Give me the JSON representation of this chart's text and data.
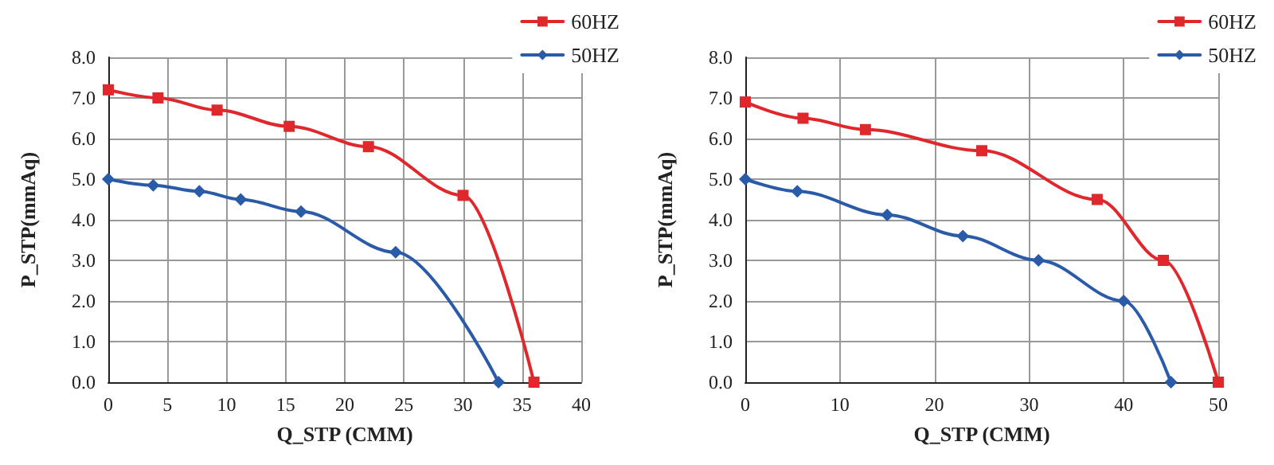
{
  "chart_data": [
    {
      "type": "line",
      "xlabel": "Q_STP (CMM)",
      "ylabel": "P_STP(mmAq)",
      "xlim": [
        0,
        40
      ],
      "xticks": [
        0,
        5,
        10,
        15,
        20,
        25,
        30,
        35,
        40
      ],
      "ylim": [
        0,
        8
      ],
      "yticks": [
        {
          "value": 0,
          "label": "0.0"
        },
        {
          "value": 1,
          "label": "1.0"
        },
        {
          "value": 2,
          "label": "2.0"
        },
        {
          "value": 3,
          "label": "3.0"
        },
        {
          "value": 4,
          "label": "4.0"
        },
        {
          "value": 5,
          "label": "5.0"
        },
        {
          "value": 6,
          "label": "6.0"
        },
        {
          "value": 7,
          "label": "7.0"
        },
        {
          "value": 8,
          "label": "8.0"
        }
      ],
      "grid": true,
      "legend": "top right",
      "line_style": "solid",
      "series": [
        {
          "name": "60HZ",
          "color": "#e0282c",
          "marker": "square",
          "x": [
            0,
            4.2,
            9.2,
            15.3,
            22,
            30,
            36
          ],
          "values": [
            7.2,
            7.0,
            6.7,
            6.3,
            5.8,
            4.6,
            0
          ]
        },
        {
          "name": "50HZ",
          "color": "#2a5ba8",
          "marker": "diamond",
          "x": [
            0,
            3.8,
            7.7,
            11.2,
            16.3,
            24.3,
            33
          ],
          "values": [
            5.0,
            4.85,
            4.7,
            4.5,
            4.2,
            3.2,
            0
          ]
        }
      ]
    },
    {
      "type": "line",
      "xlabel": "Q_STP (CMM)",
      "ylabel": "P_STP(mmAq)",
      "xlim": [
        0,
        50
      ],
      "xticks": [
        0,
        10,
        20,
        30,
        40,
        50
      ],
      "ylim": [
        0,
        8
      ],
      "yticks": [
        {
          "value": 0,
          "label": "0.0"
        },
        {
          "value": 1,
          "label": "1.0"
        },
        {
          "value": 2,
          "label": "2.0"
        },
        {
          "value": 3,
          "label": "3.0"
        },
        {
          "value": 4,
          "label": "4.0"
        },
        {
          "value": 5,
          "label": "5.0"
        },
        {
          "value": 6,
          "label": "6.0"
        },
        {
          "value": 7,
          "label": "7.0"
        },
        {
          "value": 8,
          "label": "8.0"
        }
      ],
      "grid": true,
      "legend": "top right",
      "line_style": "solid",
      "series": [
        {
          "name": "60HZ",
          "color": "#e0282c",
          "marker": "square",
          "x": [
            0,
            6.1,
            12.7,
            25,
            37.2,
            44.2,
            50
          ],
          "values": [
            6.9,
            6.5,
            6.22,
            5.7,
            4.5,
            3.0,
            0
          ]
        },
        {
          "name": "50HZ",
          "color": "#2a5ba8",
          "marker": "diamond",
          "x": [
            0,
            5.5,
            15,
            23,
            31,
            40,
            45
          ],
          "values": [
            5.0,
            4.7,
            4.12,
            3.6,
            3.0,
            2.0,
            0
          ]
        }
      ]
    }
  ]
}
